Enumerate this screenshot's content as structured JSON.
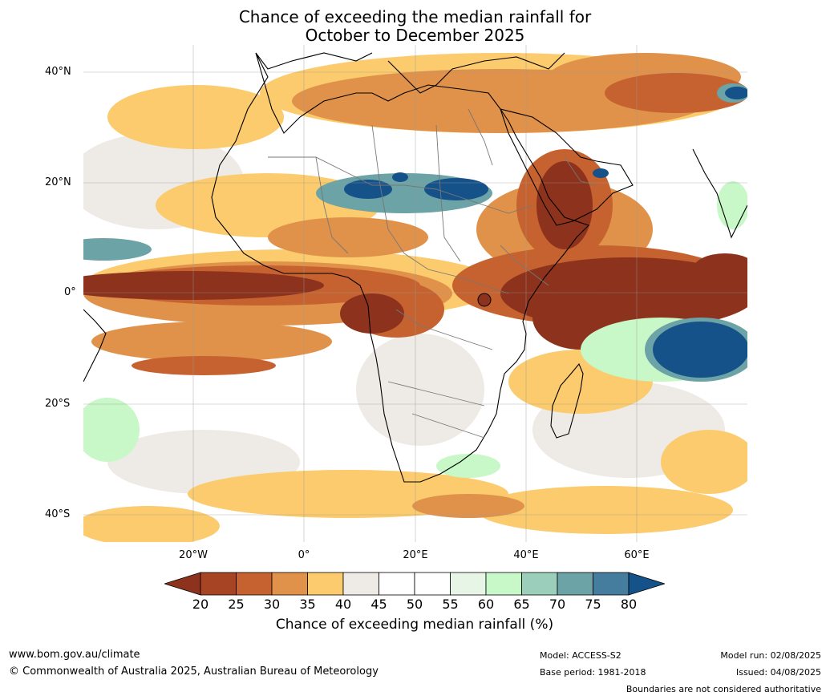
{
  "title": {
    "line1": "Chance of exceeding the median rainfall for",
    "line2": "October to December 2025"
  },
  "map": {
    "lat_labels": [
      "40°N",
      "20°N",
      "0°",
      "20°S",
      "40°S"
    ],
    "lon_labels": [
      "20°W",
      "0°",
      "20°E",
      "40°E",
      "60°E"
    ]
  },
  "colorbar": {
    "ticks": [
      "20",
      "25",
      "30",
      "35",
      "40",
      "45",
      "50",
      "55",
      "60",
      "65",
      "70",
      "75",
      "80"
    ],
    "colors": [
      "#a64424",
      "#c6622f",
      "#e0924a",
      "#fbcb6d",
      "#eeeae6",
      "#ffffff",
      "#ffffff",
      "#e6f5e6",
      "#c8f7c8",
      "#9ccfbb",
      "#6ba3a6",
      "#457d9f"
    ],
    "under_color": "#8d321c",
    "over_color": "#16528a",
    "label": "Chance of exceeding median rainfall (%)"
  },
  "footer": {
    "website": "www.bom.gov.au/climate",
    "copyright": "© Commonwealth of Australia 2025, Australian Bureau of Meteorology",
    "model": "Model: ACCESS-S2",
    "base_period": "Base period: 1981-2018",
    "model_run": "Model run: 02/08/2025",
    "issued": "Issued: 04/08/2025",
    "disclaimer": "Boundaries are not considered authoritative"
  }
}
